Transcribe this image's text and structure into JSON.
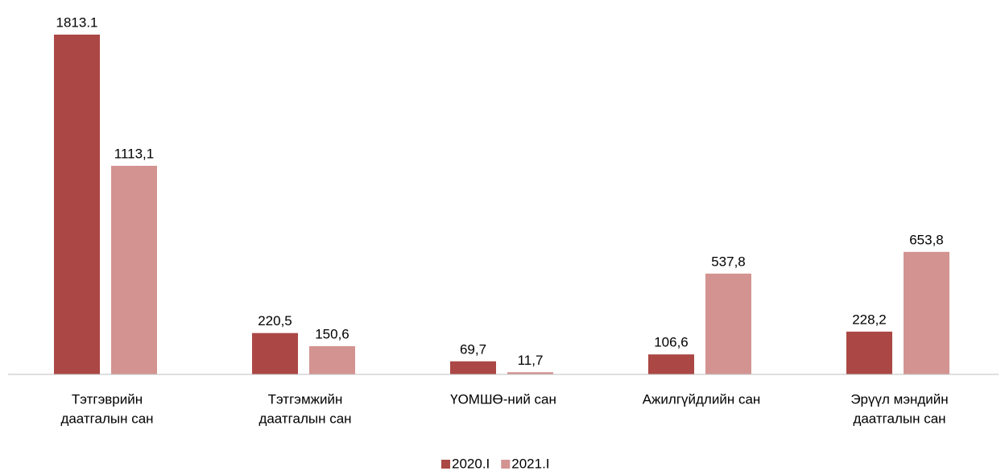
{
  "chart_data": {
    "type": "bar",
    "categories": [
      [
        "Тэтгэврийн",
        "даатгалын сан"
      ],
      [
        "Тэтгэмжийн",
        "даатгалын сан"
      ],
      [
        "ҮОМШӨ-ний сан"
      ],
      [
        "Ажилгүйдлийн сан"
      ],
      [
        "Эрүүл мэндийн",
        "даатгалын сан"
      ]
    ],
    "series": [
      {
        "name": "2020.I",
        "color": "#ab4744",
        "values": [
          1813.1,
          220.5,
          69.7,
          106.6,
          228.2
        ],
        "value_labels": [
          "1813.1",
          "220,5",
          "69,7",
          "106,6",
          "228,2"
        ]
      },
      {
        "name": "2021.I",
        "color": "#d39391",
        "values": [
          1113.1,
          150.6,
          11.7,
          537.8,
          653.8
        ],
        "value_labels": [
          "1113,1",
          "150,6",
          "11,7",
          "537,8",
          "653,8"
        ]
      }
    ],
    "legend": "bottom"
  }
}
